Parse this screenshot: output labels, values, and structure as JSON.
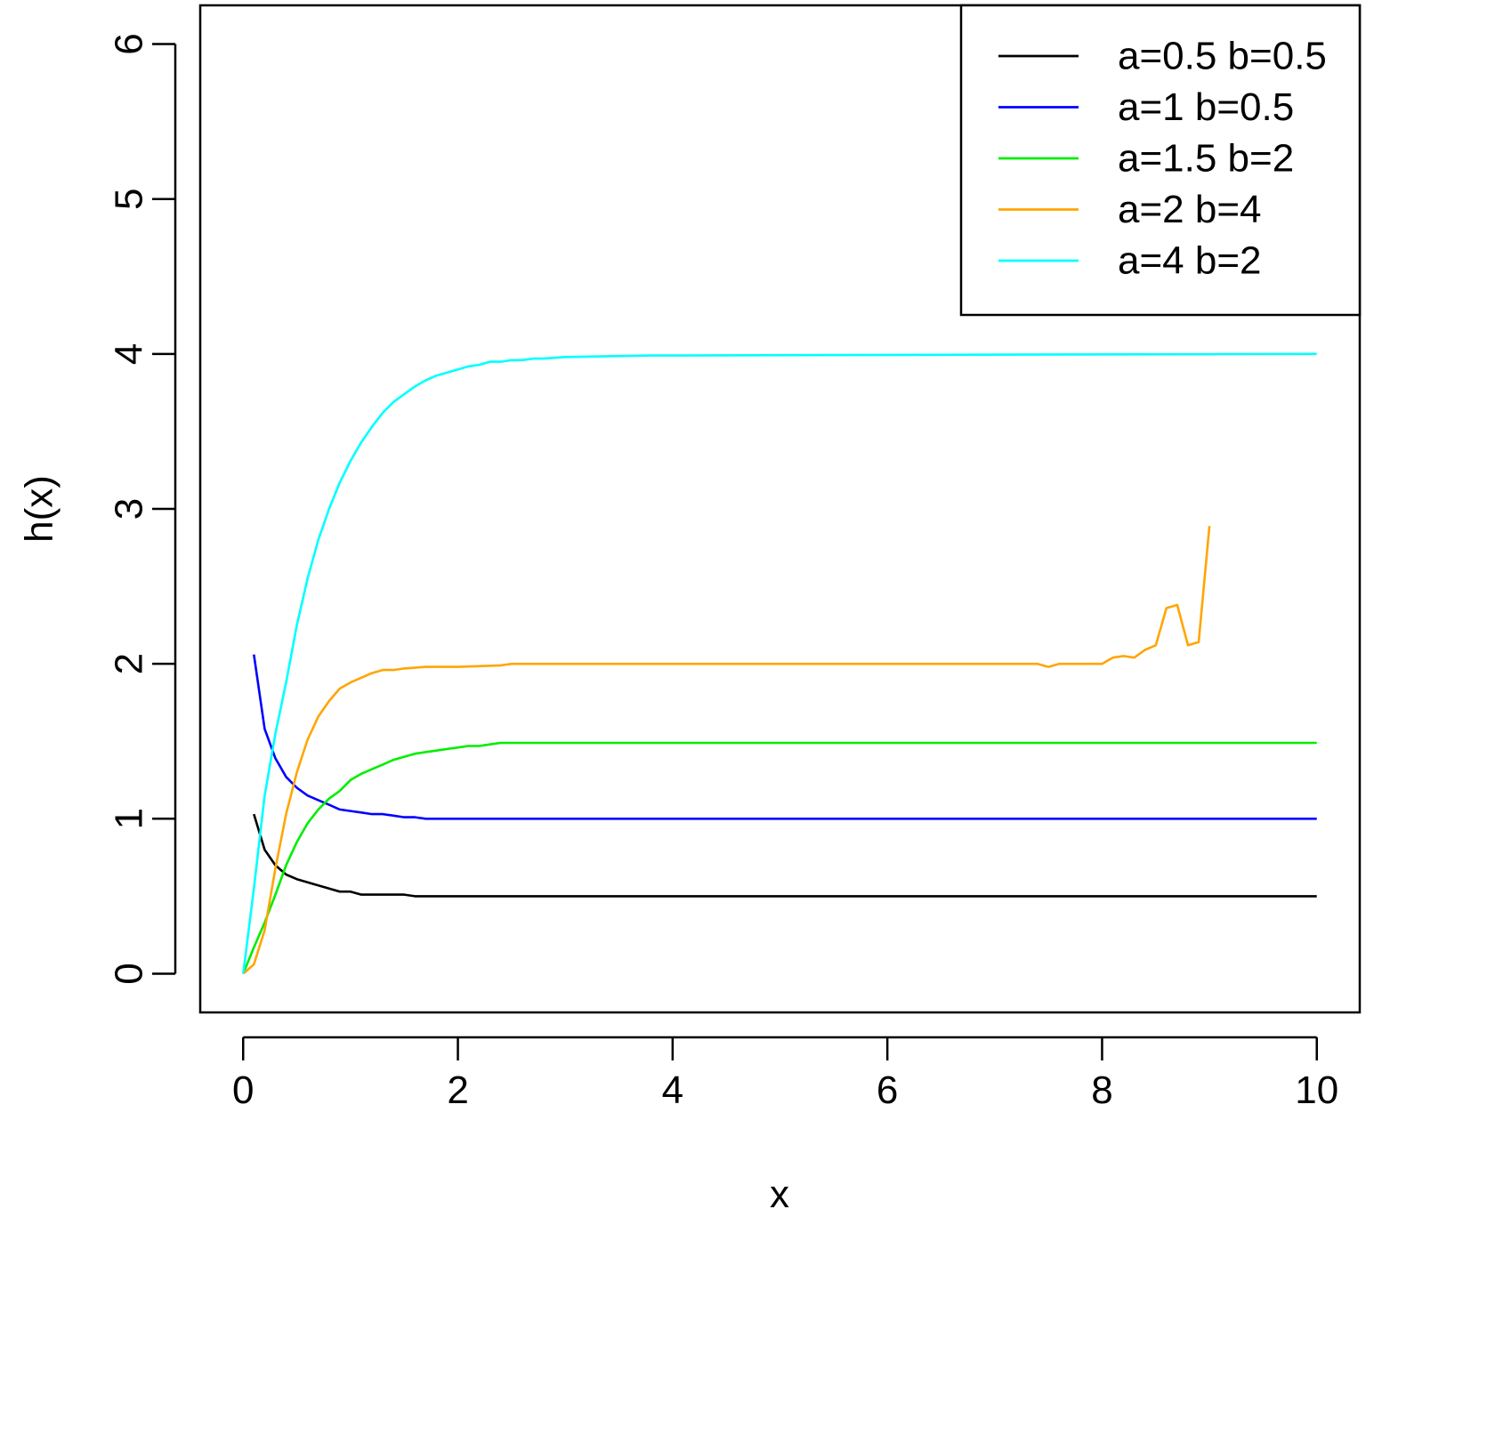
{
  "chart_data": {
    "type": "line",
    "title": "",
    "xlabel": "x",
    "ylabel": "h(x)",
    "xlim": [
      -0.4,
      10.4
    ],
    "ylim": [
      -0.25,
      6.25
    ],
    "xticks": [
      0,
      2,
      4,
      6,
      8,
      10
    ],
    "xtick_labels": [
      "0",
      "2",
      "4",
      "6",
      "8",
      "10"
    ],
    "yticks": [
      0,
      1,
      2,
      3,
      4,
      5,
      6
    ],
    "ytick_labels": [
      "0",
      "1",
      "2",
      "3",
      "4",
      "5",
      "6"
    ],
    "grid": false,
    "legend_position": "top-right",
    "series": [
      {
        "name": "a=0.5 b=0.5",
        "color": "#000000",
        "x": [
          0.1,
          0.2,
          0.3,
          0.4,
          0.5,
          0.6,
          0.7,
          0.8,
          0.9,
          1.0,
          1.1,
          1.3,
          1.5,
          1.6,
          1.8,
          10
        ],
        "y": [
          1.03,
          0.8,
          0.7,
          0.64,
          0.61,
          0.59,
          0.57,
          0.55,
          0.53,
          0.53,
          0.51,
          0.51,
          0.51,
          0.5,
          0.5,
          0.5
        ]
      },
      {
        "name": "a=1 b=0.5",
        "color": "#0000ff",
        "x": [
          0.1,
          0.2,
          0.3,
          0.4,
          0.5,
          0.6,
          0.7,
          0.8,
          0.9,
          1.0,
          1.1,
          1.2,
          1.3,
          1.4,
          1.5,
          1.6,
          1.7,
          10
        ],
        "y": [
          2.06,
          1.58,
          1.39,
          1.27,
          1.2,
          1.15,
          1.12,
          1.09,
          1.06,
          1.05,
          1.04,
          1.03,
          1.03,
          1.02,
          1.01,
          1.01,
          1.0,
          1.0
        ]
      },
      {
        "name": "a=1.5 b=2",
        "color": "#00ee00",
        "x": [
          0,
          0.1,
          0.2,
          0.3,
          0.4,
          0.5,
          0.6,
          0.7,
          0.8,
          0.9,
          1.0,
          1.1,
          1.2,
          1.3,
          1.4,
          1.5,
          1.6,
          1.7,
          1.8,
          1.9,
          2.0,
          2.1,
          2.2,
          2.3,
          2.4,
          10
        ],
        "y": [
          0,
          0.17,
          0.33,
          0.51,
          0.7,
          0.85,
          0.97,
          1.06,
          1.13,
          1.18,
          1.25,
          1.29,
          1.32,
          1.35,
          1.38,
          1.4,
          1.42,
          1.43,
          1.44,
          1.45,
          1.46,
          1.47,
          1.47,
          1.48,
          1.49,
          1.49
        ]
      },
      {
        "name": "a=2 b=4",
        "color": "#ffa500",
        "x": [
          0,
          0.1,
          0.2,
          0.3,
          0.4,
          0.5,
          0.6,
          0.7,
          0.8,
          0.9,
          1.0,
          1.1,
          1.2,
          1.3,
          1.4,
          1.5,
          1.7,
          2.0,
          2.4,
          2.5,
          7.4,
          7.5,
          7.6,
          8.0,
          8.1,
          8.2,
          8.3,
          8.4,
          8.5,
          8.6,
          8.7,
          8.8,
          8.9,
          9.0
        ],
        "y": [
          0,
          0.06,
          0.28,
          0.68,
          1.03,
          1.3,
          1.51,
          1.66,
          1.76,
          1.84,
          1.88,
          1.91,
          1.94,
          1.96,
          1.96,
          1.97,
          1.98,
          1.98,
          1.99,
          2.0,
          2.0,
          1.98,
          2.0,
          2.0,
          2.04,
          2.05,
          2.04,
          2.09,
          2.12,
          2.36,
          2.38,
          2.12,
          2.14,
          2.89
        ]
      },
      {
        "name": "a=4 b=2",
        "color": "#00ffff",
        "x": [
          0,
          0.1,
          0.2,
          0.3,
          0.4,
          0.5,
          0.6,
          0.7,
          0.8,
          0.9,
          1.0,
          1.1,
          1.2,
          1.3,
          1.4,
          1.5,
          1.6,
          1.7,
          1.8,
          1.9,
          2.0,
          2.1,
          2.2,
          2.3,
          2.4,
          2.5,
          2.6,
          2.7,
          2.8,
          3.0,
          3.8,
          10
        ],
        "y": [
          0,
          0.55,
          1.15,
          1.55,
          1.88,
          2.25,
          2.55,
          2.8,
          3.0,
          3.17,
          3.31,
          3.43,
          3.53,
          3.62,
          3.69,
          3.74,
          3.79,
          3.83,
          3.86,
          3.88,
          3.9,
          3.92,
          3.93,
          3.95,
          3.95,
          3.96,
          3.96,
          3.97,
          3.97,
          3.98,
          3.99,
          4.0
        ]
      }
    ]
  }
}
